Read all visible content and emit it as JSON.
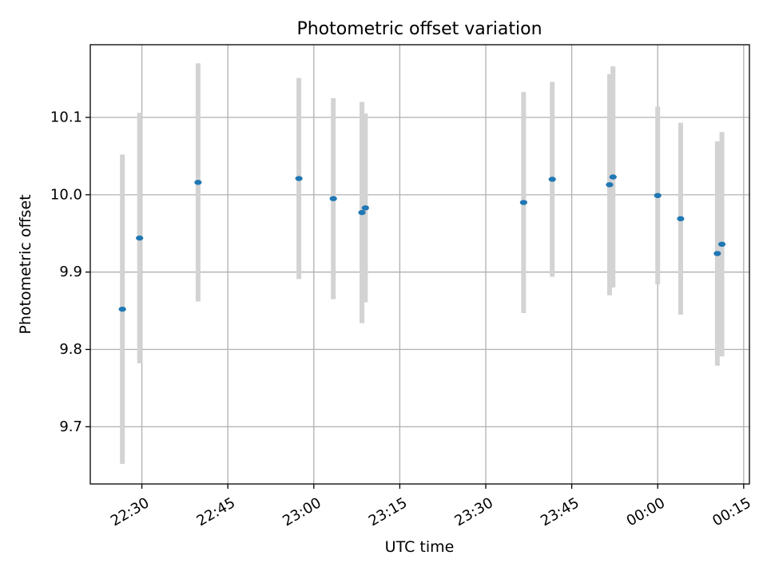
{
  "chart_data": {
    "type": "scatter",
    "title": "Photometric offset variation",
    "xlabel": "UTC time",
    "ylabel": "Photometric offset",
    "grid": true,
    "xlim": [
      "22:21",
      "00:16"
    ],
    "ylim": [
      9.626,
      10.194
    ],
    "x_ticks": [
      "22:30",
      "22:45",
      "23:00",
      "23:15",
      "23:30",
      "23:45",
      "00:00",
      "00:15"
    ],
    "y_ticks": [
      "9.7",
      "9.8",
      "9.9",
      "10.0",
      "10.1"
    ],
    "colors": {
      "point": "#1f77b4",
      "errorbar": "#d3d3d3",
      "grid": "#b0b0b0"
    },
    "points": [
      {
        "x": "22:26:36",
        "y": 9.852,
        "err": 0.2
      },
      {
        "x": "22:29:36",
        "y": 9.944,
        "err": 0.162
      },
      {
        "x": "22:39:48",
        "y": 10.016,
        "err": 0.154
      },
      {
        "x": "22:57:24",
        "y": 10.021,
        "err": 0.13
      },
      {
        "x": "23:03:24",
        "y": 9.995,
        "err": 0.13
      },
      {
        "x": "23:08:24",
        "y": 9.977,
        "err": 0.143
      },
      {
        "x": "23:09:00",
        "y": 9.983,
        "err": 0.122
      },
      {
        "x": "23:36:36",
        "y": 9.99,
        "err": 0.143
      },
      {
        "x": "23:41:36",
        "y": 10.02,
        "err": 0.126
      },
      {
        "x": "23:51:36",
        "y": 10.013,
        "err": 0.143
      },
      {
        "x": "23:52:12",
        "y": 10.023,
        "err": 0.143
      },
      {
        "x": "00:00:00",
        "y": 9.999,
        "err": 0.115
      },
      {
        "x": "00:04:00",
        "y": 9.969,
        "err": 0.124
      },
      {
        "x": "00:10:24",
        "y": 9.924,
        "err": 0.145
      },
      {
        "x": "00:11:12",
        "y": 9.936,
        "err": 0.145
      }
    ]
  }
}
